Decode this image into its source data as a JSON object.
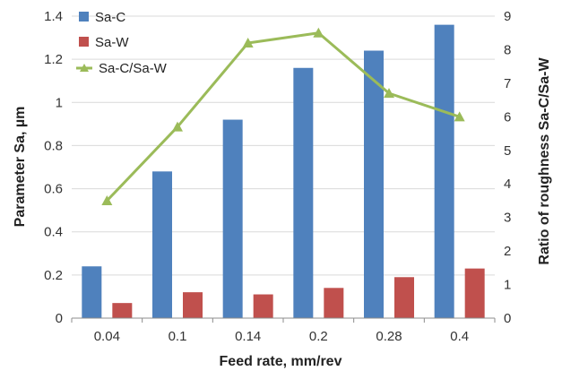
{
  "chart_data": {
    "type": "bar",
    "categories": [
      "0.04",
      "0.1",
      "0.14",
      "0.2",
      "0.28",
      "0.4"
    ],
    "series": [
      {
        "name": "Sa-C",
        "type": "bar",
        "axis": "left",
        "color": "#4F81BD",
        "values": [
          0.24,
          0.68,
          0.92,
          1.16,
          1.24,
          1.36
        ]
      },
      {
        "name": "Sa-W",
        "type": "bar",
        "axis": "left",
        "color": "#C0504D",
        "values": [
          0.07,
          0.12,
          0.11,
          0.14,
          0.19,
          0.23
        ]
      },
      {
        "name": "Sa-C/Sa-W",
        "type": "line",
        "axis": "right",
        "marker": "triangle",
        "color": "#9BBB59",
        "values": [
          3.5,
          5.7,
          8.2,
          8.5,
          6.7,
          6.0
        ]
      }
    ],
    "xlabel": "Feed rate, mm/rev",
    "ylabel": "Parameter Sa, µm",
    "y2label": "Ratio of roughness Sa-C/Sa-W",
    "ylim": [
      0,
      1.4
    ],
    "yticks": [
      "0",
      "0.2",
      "0.4",
      "0.6",
      "0.8",
      "1",
      "1.2",
      "1.4"
    ],
    "y2lim": [
      0,
      9
    ],
    "y2ticks": [
      "0",
      "1",
      "2",
      "3",
      "4",
      "5",
      "6",
      "7",
      "8",
      "9"
    ],
    "grid": true,
    "legend_position": "top-left"
  }
}
